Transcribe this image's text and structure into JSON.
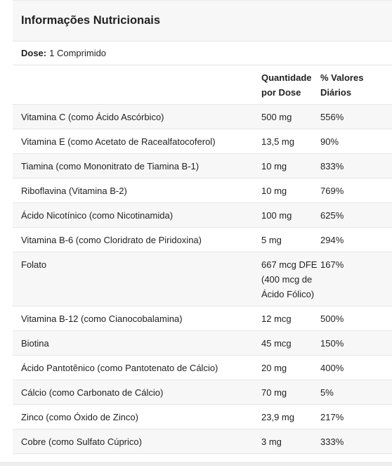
{
  "title": "Informações Nutricionais",
  "dose": {
    "label": "Dose:",
    "value": "1 Comprimido"
  },
  "columns": {
    "quantity_line1": "Quantidade",
    "quantity_line2": "por Dose",
    "dv_line1": "% Valores",
    "dv_line2": "Diários"
  },
  "rows": [
    {
      "name": "Vitamina C (como Ácido Ascórbico)",
      "qty": "500 mg",
      "dv": "556%"
    },
    {
      "name": "Vitamina E (como Acetato de Racealfatocoferol)",
      "qty": "13,5 mg",
      "dv": "90%"
    },
    {
      "name": "Tiamina (como Mononitrato de Tiamina B-1)",
      "qty": "10 mg",
      "dv": "833%"
    },
    {
      "name": "Riboflavina (Vitamina B-2)",
      "qty": "10 mg",
      "dv": "769%"
    },
    {
      "name": "Ácido Nicotínico (como Nicotinamida)",
      "qty": "100 mg",
      "dv": "625%"
    },
    {
      "name": "Vitamina B-6 (como Cloridrato de Piridoxina)",
      "qty": "5 mg",
      "dv": "294%"
    },
    {
      "name": "Folato",
      "qty": "667 mcg DFE (400 mcg de Ácido Fólico)",
      "dv": "167%"
    },
    {
      "name": "Vitamina B-12 (como Cianocobalamina)",
      "qty": "12 mcg",
      "dv": "500%"
    },
    {
      "name": "Biotina",
      "qty": "45 mcg",
      "dv": "150%"
    },
    {
      "name": "Ácido Pantotênico (como Pantotenato de Cálcio)",
      "qty": "20 mg",
      "dv": "400%"
    },
    {
      "name": "Cálcio (como Carbonato de Cálcio)",
      "qty": "70 mg",
      "dv": "5%"
    },
    {
      "name": "Zinco (como Óxido de Zinco)",
      "qty": "23,9 mg",
      "dv": "217%"
    },
    {
      "name": "Cobre (como Sulfato Cúprico)",
      "qty": "3 mg",
      "dv": "333%"
    }
  ]
}
